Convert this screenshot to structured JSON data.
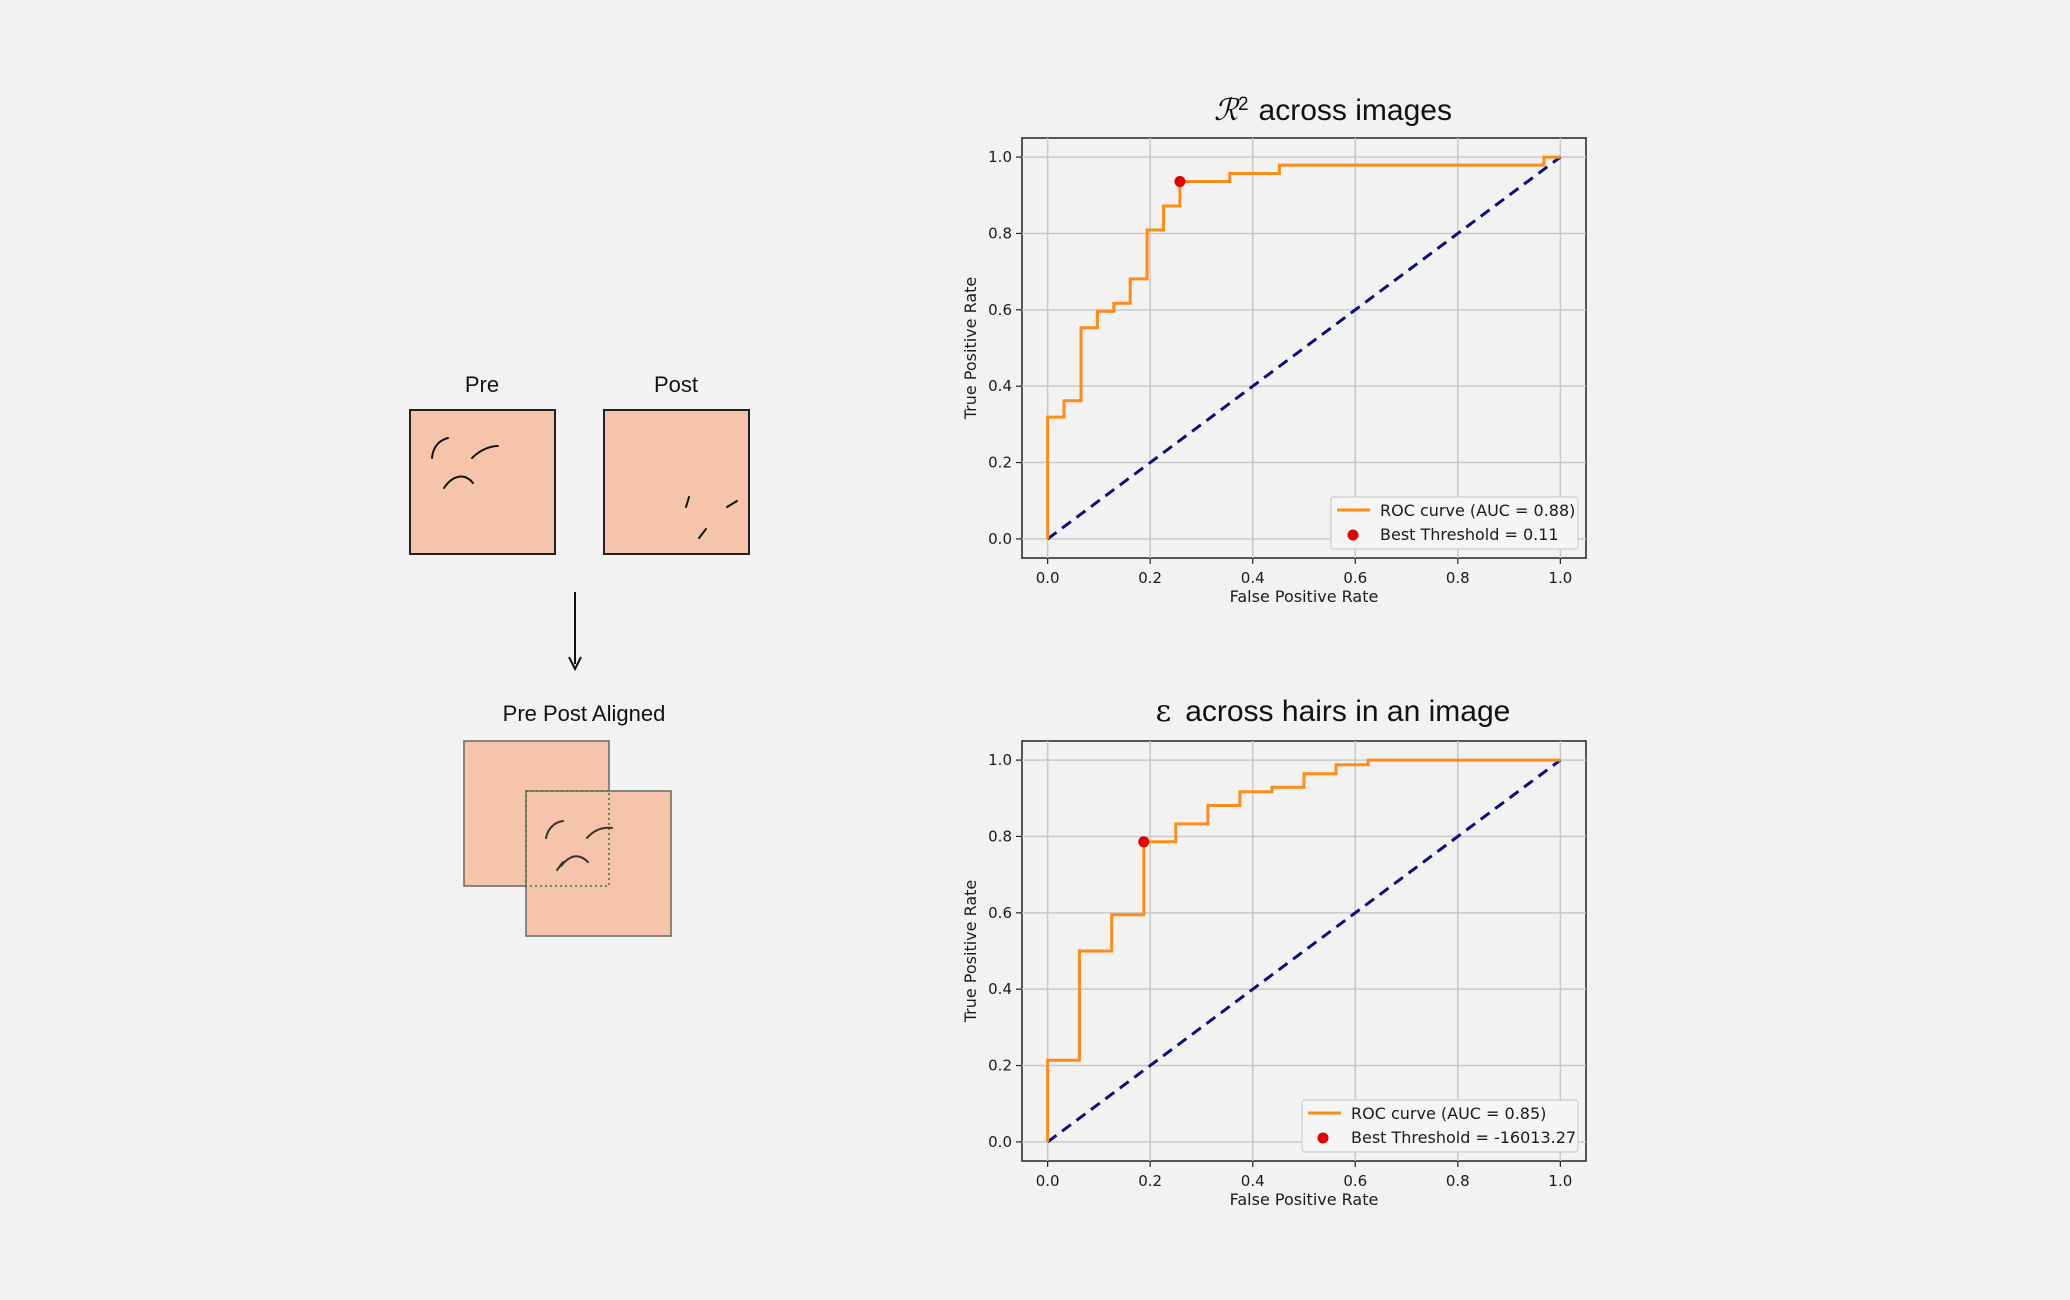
{
  "diagram": {
    "pre_label": "Pre",
    "post_label": "Post",
    "aligned_label": "Pre Post Aligned",
    "skin_color": "#f6c4aa",
    "frame_color": "#222222",
    "overlap_outline_color": "#2e7d32"
  },
  "colors": {
    "roc_curve": "#ff8c1a",
    "diagonal": "#0d0d80",
    "best_point": "#e60000",
    "grid": "#c8c8c8",
    "plot_bg": "#f2f2f2"
  },
  "chart_data": [
    {
      "type": "line",
      "title": "across images",
      "title_symbol": "ℛ",
      "title_superscript": "2",
      "xlabel": "False Positive Rate",
      "ylabel": "True Positive Rate",
      "xlim": [
        -0.05,
        1.05
      ],
      "ylim": [
        -0.05,
        1.05
      ],
      "xticks": [
        "0.0",
        "0.2",
        "0.4",
        "0.6",
        "0.8",
        "1.0"
      ],
      "yticks": [
        "0.0",
        "0.2",
        "0.4",
        "0.6",
        "0.8",
        "1.0"
      ],
      "grid": true,
      "legend_position": "lower-right",
      "series": [
        {
          "name": "ROC curve (AUC = 0.88)",
          "x": [
            0.0,
            0.0,
            0.032,
            0.032,
            0.065,
            0.065,
            0.097,
            0.097,
            0.129,
            0.129,
            0.161,
            0.161,
            0.194,
            0.194,
            0.226,
            0.226,
            0.258,
            0.258,
            0.355,
            0.355,
            0.452,
            0.452,
            0.968,
            0.968,
            1.0
          ],
          "y": [
            0.0,
            0.319,
            0.319,
            0.362,
            0.362,
            0.553,
            0.553,
            0.596,
            0.596,
            0.617,
            0.617,
            0.681,
            0.681,
            0.809,
            0.809,
            0.872,
            0.872,
            0.936,
            0.936,
            0.957,
            0.957,
            0.979,
            0.979,
            1.0,
            1.0
          ]
        },
        {
          "name": "Best Threshold = 0.11",
          "x": [
            0.258
          ],
          "y": [
            0.936
          ]
        }
      ]
    },
    {
      "type": "line",
      "title": "across hairs in an image",
      "title_symbol": "ε",
      "title_superscript": "",
      "xlabel": "False Positive Rate",
      "ylabel": "True Positive Rate",
      "xlim": [
        -0.05,
        1.05
      ],
      "ylim": [
        -0.05,
        1.05
      ],
      "xticks": [
        "0.0",
        "0.2",
        "0.4",
        "0.6",
        "0.8",
        "1.0"
      ],
      "yticks": [
        "0.0",
        "0.2",
        "0.4",
        "0.6",
        "0.8",
        "1.0"
      ],
      "grid": true,
      "legend_position": "lower-right",
      "series": [
        {
          "name": "ROC curve (AUC = 0.85)",
          "x": [
            0.0,
            0.0,
            0.062,
            0.062,
            0.125,
            0.125,
            0.1875,
            0.1875,
            0.25,
            0.25,
            0.3125,
            0.3125,
            0.375,
            0.375,
            0.4375,
            0.4375,
            0.5,
            0.5,
            0.5625,
            0.5625,
            0.625,
            0.625,
            1.0
          ],
          "y": [
            0.0,
            0.214,
            0.214,
            0.5,
            0.5,
            0.595,
            0.595,
            0.786,
            0.786,
            0.833,
            0.833,
            0.881,
            0.881,
            0.917,
            0.917,
            0.929,
            0.929,
            0.964,
            0.964,
            0.988,
            0.988,
            1.0,
            1.0
          ]
        },
        {
          "name": "Best Threshold = -16013.27",
          "x": [
            0.1875
          ],
          "y": [
            0.786
          ]
        }
      ]
    }
  ]
}
